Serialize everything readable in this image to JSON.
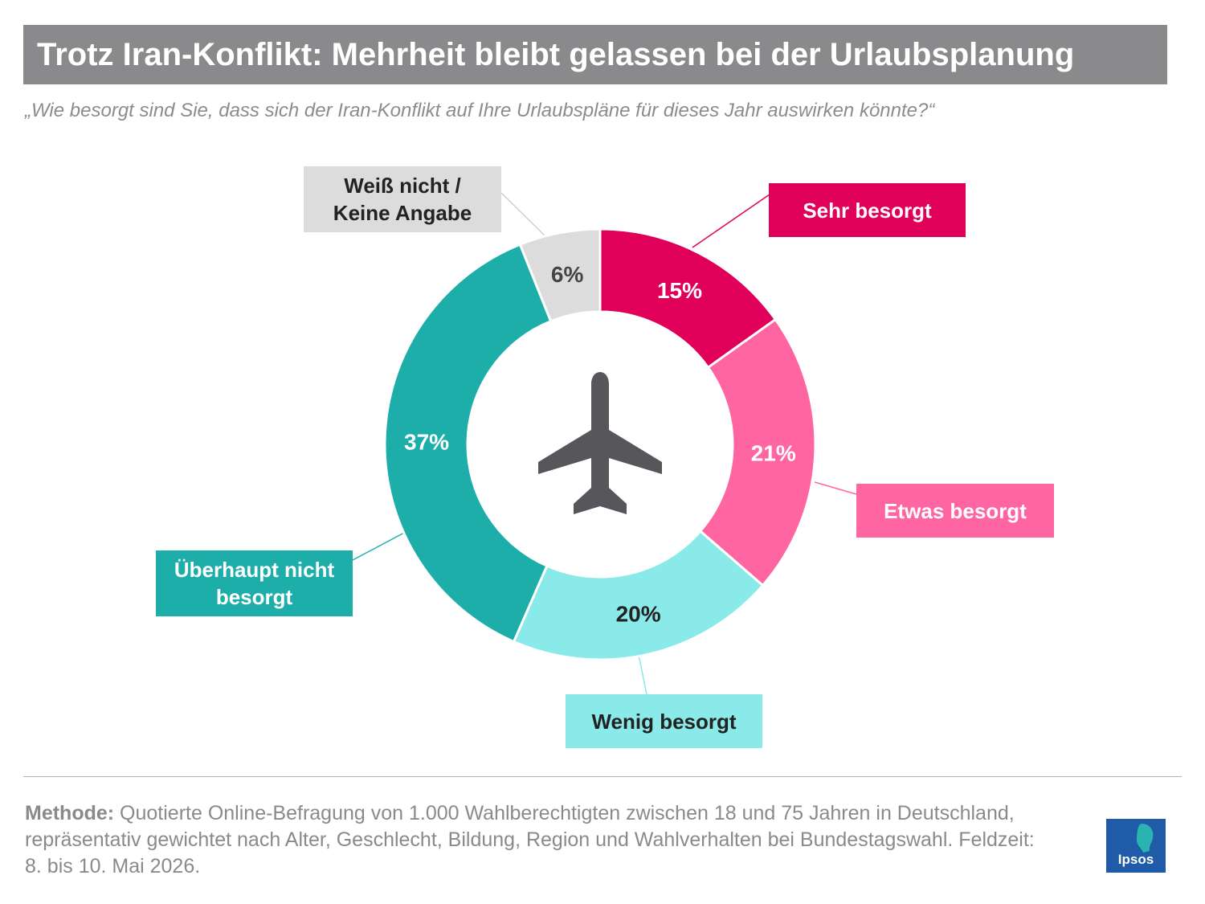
{
  "title": "Trotz Iran-Konflikt: Mehrheit bleibt gelassen bei der Urlaubsplanung",
  "subtitle": "„Wie besorgt sind Sie, dass sich der Iran-Konflikt auf Ihre Urlaubspläne für dieses Jahr auswirken könnte?“",
  "chart_data": {
    "type": "pie",
    "variant": "donut",
    "categories": [
      "Sehr besorgt",
      "Etwas besorgt",
      "Wenig besorgt",
      "Überhaupt nicht besorgt",
      "Weiß nicht / Keine Angabe"
    ],
    "values": [
      15,
      21,
      20,
      37,
      6
    ],
    "value_labels": [
      "15%",
      "21%",
      "20%",
      "37%",
      "6%"
    ],
    "colors": [
      "#e0005a",
      "#ff65a0",
      "#8ae9e9",
      "#1eaeaa",
      "#dcdcdc"
    ],
    "label_text_colors": [
      "#ffffff",
      "#ffffff",
      "#222222",
      "#ffffff",
      "#444444"
    ],
    "legend_label_lines": [
      [
        "Sehr besorgt"
      ],
      [
        "Etwas besorgt"
      ],
      [
        "Wenig besorgt"
      ],
      [
        "Überhaupt nicht",
        "besorgt"
      ],
      [
        "Weiß nicht /",
        "Keine Angabe"
      ]
    ],
    "legend_text_colors": [
      "#ffffff",
      "#ffffff",
      "#222222",
      "#ffffff",
      "#222222"
    ],
    "center_icon": "airplane-icon"
  },
  "footer": {
    "methode_label": "Methode:",
    "methode_text": " Quotierte Online-Befragung von 1.000 Wahlberechtigten zwischen 18 und 75 Jahren in Deutschland, repräsentativ gewichtet nach Alter, Geschlecht, Bildung, Region und Wahlverhalten bei Bundestagswahl. Feldzeit: 8. bis 10. Mai 2026."
  },
  "logo": {
    "text": "Ipsos",
    "color": "#1f5ba8"
  }
}
